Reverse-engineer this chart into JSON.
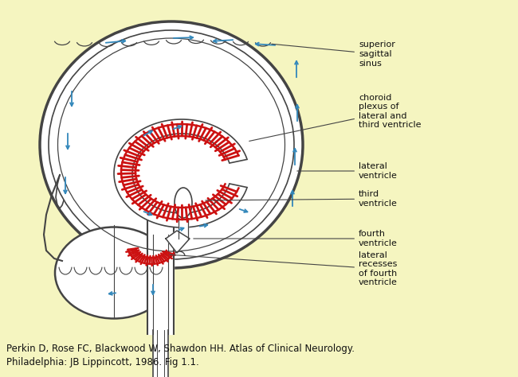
{
  "bg_color": "#f5f5c0",
  "line_color": "#444444",
  "arrow_color": "#3388bb",
  "red_color": "#cc1111",
  "white": "#ffffff",
  "caption1": "Perkin D, Rose FC, Blackwood W, Shawdon HH. Atlas of Clinical Neurology.",
  "caption2": "Philadelphia: JB Lippincott, 1986. Fig 1.1.",
  "caption_fs": 8.5,
  "label_fs": 8,
  "labels": {
    "sup_sag": "superior\nsagittal\nsinus",
    "choroid": "choroid\nplexus of\nlateral and\nthird ventricle",
    "lat_vent": "lateral\nventricle",
    "third_vent": "third\nventricle",
    "fourth_vent": "fourth\nventricle",
    "lat_rec": "lateral\nrecesses\nof fourth\nventricle"
  }
}
